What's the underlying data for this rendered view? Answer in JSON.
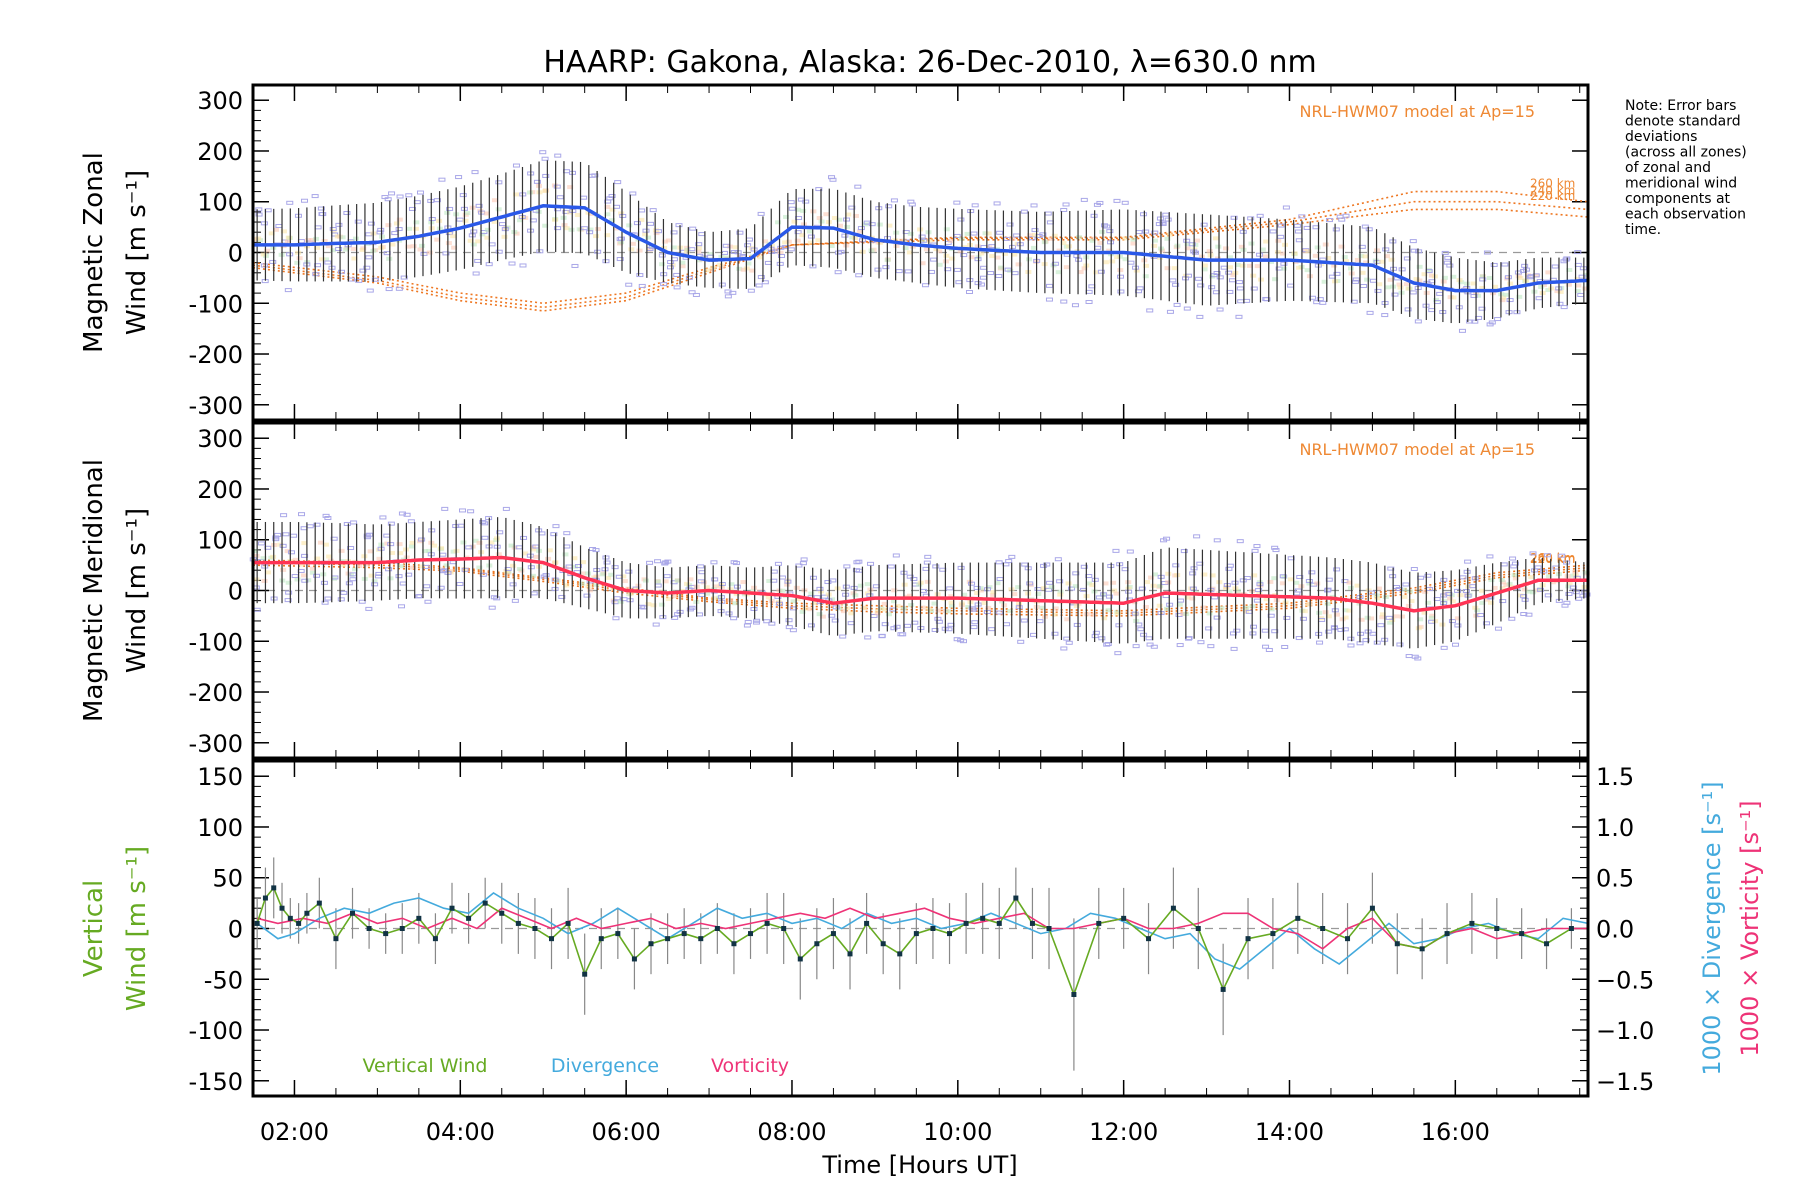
{
  "title": "HAARP: Gakona,  Alaska: 26-Dec-2010, λ=630.0 nm",
  "note": [
    "Note: Error bars",
    "denote standard",
    "deviations",
    "(across all zones)",
    "of zonal and",
    "meridional wind",
    "components at",
    "each observation",
    "time."
  ],
  "colors": {
    "zonal": "#2a58e8",
    "meridional": "#ff3355",
    "model": "#ee7722",
    "model_label": "#ee8833",
    "zone_points": "#a9a7e8",
    "error_bars": "#333333",
    "vertical": "#66aa22",
    "divergence": "#44aadd",
    "vorticity": "#ee3377",
    "vertical_err": "#888888",
    "vertical_points": "#113344"
  },
  "chart_data": [
    {
      "type": "line",
      "panel": "zonal",
      "ylabel_line1": "Magnetic Zonal",
      "ylabel_line2": "Wind [m s⁻¹]",
      "ylim": [
        -330,
        330
      ],
      "yticks": [
        300,
        200,
        100,
        0,
        -100,
        -200,
        -300
      ],
      "xlim": [
        1.5,
        17.6
      ],
      "annotation": "NRL-HWM07 model at Ap=15",
      "series": [
        {
          "role": "mean",
          "x": [
            1.5,
            2.0,
            2.5,
            3.0,
            3.5,
            4.0,
            4.5,
            5.0,
            5.5,
            6.0,
            6.5,
            7.0,
            7.5,
            8.0,
            8.5,
            9.0,
            9.5,
            10.0,
            11.0,
            12.0,
            13.0,
            14.0,
            15.0,
            15.5,
            16.0,
            16.5,
            17.0,
            17.6
          ],
          "y": [
            15,
            15,
            18,
            20,
            32,
            48,
            70,
            92,
            88,
            40,
            0,
            -15,
            -12,
            50,
            48,
            25,
            15,
            8,
            0,
            0,
            -15,
            -15,
            -25,
            -60,
            -75,
            -75,
            -60,
            -55
          ],
          "err": [
            70,
            72,
            75,
            78,
            80,
            82,
            85,
            90,
            90,
            80,
            60,
            55,
            60,
            75,
            78,
            75,
            75,
            78,
            80,
            85,
            90,
            80,
            75,
            70,
            65,
            55,
            50,
            45
          ]
        }
      ],
      "model_curves": [
        {
          "name": "260 km",
          "x": [
            1.5,
            3.0,
            4.0,
            5.0,
            6.0,
            7.0,
            8.0,
            10.0,
            12.0,
            14.0,
            15.5,
            16.5,
            17.6
          ],
          "y": [
            -30,
            -60,
            -95,
            -115,
            -95,
            -40,
            15,
            30,
            30,
            65,
            120,
            120,
            100
          ]
        },
        {
          "name": "240 km",
          "x": [
            1.5,
            3.0,
            4.0,
            5.0,
            6.0,
            7.0,
            8.0,
            10.0,
            12.0,
            14.0,
            15.5,
            16.5,
            17.6
          ],
          "y": [
            -25,
            -55,
            -88,
            -108,
            -88,
            -35,
            15,
            28,
            28,
            60,
            100,
            100,
            85
          ]
        },
        {
          "name": "220 km",
          "x": [
            1.5,
            3.0,
            4.0,
            5.0,
            6.0,
            7.0,
            8.0,
            10.0,
            12.0,
            14.0,
            15.5,
            16.5,
            17.6
          ],
          "y": [
            -20,
            -48,
            -80,
            -100,
            -80,
            -30,
            15,
            25,
            25,
            55,
            85,
            85,
            70
          ]
        }
      ]
    },
    {
      "type": "line",
      "panel": "meridional",
      "ylabel_line1": "Magnetic Meridional",
      "ylabel_line2": "Wind [m s⁻¹]",
      "ylim": [
        -330,
        330
      ],
      "yticks": [
        300,
        200,
        100,
        0,
        -100,
        -200,
        -300
      ],
      "xlim": [
        1.5,
        17.6
      ],
      "annotation": "NRL-HWM07 model at Ap=15",
      "series": [
        {
          "role": "mean",
          "x": [
            1.5,
            2.0,
            2.5,
            3.0,
            3.5,
            4.0,
            4.5,
            5.0,
            5.5,
            6.0,
            6.5,
            7.0,
            7.5,
            8.0,
            8.5,
            9.0,
            10.0,
            11.0,
            12.0,
            12.5,
            13.5,
            14.5,
            15.0,
            15.5,
            16.0,
            16.5,
            17.0,
            17.6
          ],
          "y": [
            55,
            55,
            55,
            55,
            60,
            62,
            65,
            55,
            25,
            0,
            -5,
            0,
            -5,
            -10,
            -25,
            -15,
            -15,
            -20,
            -25,
            -5,
            -10,
            -15,
            -25,
            -40,
            -30,
            -5,
            20,
            20
          ],
          "err": [
            80,
            80,
            78,
            75,
            75,
            78,
            80,
            70,
            60,
            55,
            50,
            50,
            50,
            60,
            65,
            65,
            70,
            75,
            80,
            90,
            85,
            80,
            80,
            75,
            70,
            60,
            45,
            35
          ]
        }
      ],
      "model_curves": [
        {
          "name": "260 km",
          "x": [
            1.5,
            3.0,
            4.0,
            5.0,
            6.0,
            7.0,
            8.0,
            9.0,
            10.0,
            12.0,
            14.0,
            15.5,
            16.5,
            17.6
          ],
          "y": [
            60,
            55,
            45,
            25,
            5,
            -15,
            -25,
            -30,
            -35,
            -40,
            -25,
            5,
            35,
            50
          ]
        },
        {
          "name": "240 km",
          "x": [
            1.5,
            3.0,
            4.0,
            5.0,
            6.0,
            7.0,
            8.0,
            9.0,
            10.0,
            12.0,
            14.0,
            15.5,
            16.5,
            17.6
          ],
          "y": [
            55,
            50,
            42,
            22,
            0,
            -18,
            -30,
            -36,
            -40,
            -45,
            -30,
            0,
            30,
            45
          ]
        },
        {
          "name": "220 km",
          "x": [
            1.5,
            3.0,
            4.0,
            5.0,
            6.0,
            7.0,
            8.0,
            9.0,
            10.0,
            12.0,
            14.0,
            15.5,
            16.5,
            17.6
          ],
          "y": [
            50,
            45,
            38,
            18,
            -5,
            -22,
            -35,
            -42,
            -46,
            -50,
            -35,
            -5,
            25,
            40
          ]
        }
      ]
    },
    {
      "type": "line",
      "panel": "vertical",
      "ylabel_line1": "Vertical",
      "ylabel_line2": "Wind [m s⁻¹]",
      "ylim": [
        -165,
        165
      ],
      "yticks": [
        150,
        100,
        50,
        0,
        -50,
        -100,
        -150
      ],
      "y2label_a": "1000 × Divergence [s⁻¹]",
      "y2label_b": "1000 × Vorticity [s⁻¹]",
      "y2lim": [
        -1.65,
        1.65
      ],
      "y2ticks": [
        "1.5",
        "1.0",
        "0.5",
        "0.0",
        "−0.5",
        "−1.0",
        "−1.5"
      ],
      "y2tick_values": [
        1.5,
        1.0,
        0.5,
        0.0,
        -0.5,
        -1.0,
        -1.5
      ],
      "legend": [
        "Vertical Wind",
        "Divergence",
        "Vorticity"
      ],
      "xlabel": "Time [Hours UT]",
      "xticks": [
        "02:00",
        "04:00",
        "06:00",
        "08:00",
        "10:00",
        "12:00",
        "14:00",
        "16:00"
      ],
      "xtick_values": [
        2,
        4,
        6,
        8,
        10,
        12,
        14,
        16
      ],
      "xminor_step": 0.5,
      "series": [
        {
          "name": "Vertical Wind",
          "x": [
            1.55,
            1.65,
            1.75,
            1.85,
            1.95,
            2.05,
            2.15,
            2.3,
            2.5,
            2.7,
            2.9,
            3.1,
            3.3,
            3.5,
            3.7,
            3.9,
            4.1,
            4.3,
            4.5,
            4.7,
            4.9,
            5.1,
            5.3,
            5.5,
            5.7,
            5.9,
            6.1,
            6.3,
            6.5,
            6.7,
            6.9,
            7.1,
            7.3,
            7.5,
            7.7,
            7.9,
            8.1,
            8.3,
            8.5,
            8.7,
            8.9,
            9.1,
            9.3,
            9.5,
            9.7,
            9.9,
            10.1,
            10.3,
            10.5,
            10.7,
            10.9,
            11.1,
            11.4,
            11.7,
            12.0,
            12.3,
            12.6,
            12.9,
            13.2,
            13.5,
            13.8,
            14.1,
            14.4,
            14.7,
            15.0,
            15.3,
            15.6,
            15.9,
            16.2,
            16.5,
            16.8,
            17.1,
            17.4
          ],
          "y": [
            5,
            30,
            40,
            20,
            10,
            5,
            15,
            25,
            -10,
            15,
            0,
            -5,
            0,
            10,
            -10,
            20,
            10,
            25,
            15,
            5,
            0,
            -10,
            5,
            -45,
            -10,
            -5,
            -30,
            -15,
            -10,
            -5,
            -10,
            0,
            -15,
            -5,
            5,
            0,
            -30,
            -15,
            -5,
            -25,
            5,
            -15,
            -25,
            -5,
            0,
            -5,
            5,
            10,
            5,
            30,
            5,
            0,
            -65,
            5,
            10,
            -10,
            20,
            0,
            -60,
            -10,
            -5,
            10,
            0,
            -10,
            20,
            -15,
            -20,
            -5,
            5,
            0,
            -5,
            -15,
            0
          ],
          "err": [
            25,
            30,
            30,
            25,
            20,
            20,
            20,
            25,
            30,
            25,
            20,
            20,
            25,
            25,
            25,
            25,
            25,
            25,
            30,
            30,
            30,
            30,
            35,
            40,
            30,
            25,
            30,
            30,
            25,
            25,
            25,
            25,
            30,
            25,
            30,
            35,
            40,
            35,
            35,
            35,
            30,
            30,
            35,
            30,
            30,
            30,
            30,
            35,
            35,
            30,
            35,
            40,
            75,
            35,
            30,
            35,
            40,
            40,
            45,
            40,
            35,
            35,
            35,
            35,
            35,
            30,
            30,
            30,
            30,
            30,
            25,
            25,
            20
          ]
        },
        {
          "name": "Divergence",
          "x": [
            1.55,
            1.8,
            2.0,
            2.3,
            2.6,
            2.9,
            3.2,
            3.5,
            3.8,
            4.1,
            4.4,
            4.7,
            5.0,
            5.3,
            5.6,
            5.9,
            6.2,
            6.5,
            6.8,
            7.1,
            7.4,
            7.7,
            8.0,
            8.3,
            8.6,
            8.9,
            9.2,
            9.5,
            9.8,
            10.1,
            10.4,
            10.7,
            11.0,
            11.3,
            11.6,
            11.9,
            12.2,
            12.5,
            12.8,
            13.1,
            13.4,
            13.7,
            14.0,
            14.3,
            14.6,
            14.9,
            15.2,
            15.5,
            15.8,
            16.1,
            16.4,
            16.7,
            17.0,
            17.3,
            17.6
          ],
          "y": [
            0.05,
            -0.1,
            -0.05,
            0.1,
            0.2,
            0.15,
            0.25,
            0.3,
            0.2,
            0.15,
            0.35,
            0.2,
            0.1,
            -0.05,
            0.05,
            0.2,
            0.05,
            -0.1,
            0.05,
            0.2,
            0.1,
            0.15,
            0.05,
            0.1,
            0.0,
            0.15,
            0.05,
            0.1,
            0.0,
            0.05,
            0.15,
            0.05,
            -0.05,
            0.0,
            0.15,
            0.1,
            0.0,
            -0.1,
            -0.05,
            -0.3,
            -0.4,
            -0.2,
            0.0,
            -0.2,
            -0.35,
            -0.15,
            0.05,
            -0.15,
            -0.1,
            0.0,
            0.05,
            -0.05,
            -0.1,
            0.1,
            0.05
          ]
        },
        {
          "name": "Vorticity",
          "x": [
            1.55,
            1.8,
            2.1,
            2.4,
            2.7,
            3.0,
            3.3,
            3.6,
            3.9,
            4.2,
            4.5,
            4.8,
            5.1,
            5.4,
            5.7,
            6.0,
            6.3,
            6.6,
            6.9,
            7.2,
            7.5,
            7.8,
            8.1,
            8.4,
            8.7,
            9.0,
            9.3,
            9.6,
            9.9,
            10.2,
            10.5,
            10.8,
            11.1,
            11.4,
            11.7,
            12.0,
            12.3,
            12.6,
            12.9,
            13.2,
            13.5,
            13.8,
            14.1,
            14.4,
            14.7,
            15.0,
            15.3,
            15.6,
            15.9,
            16.2,
            16.5,
            16.8,
            17.1,
            17.4,
            17.6
          ],
          "y": [
            0.1,
            0.05,
            0.1,
            0.05,
            0.15,
            0.05,
            0.1,
            0.0,
            0.1,
            0.0,
            0.2,
            0.1,
            0.0,
            0.1,
            0.0,
            0.05,
            0.1,
            0.0,
            0.05,
            0.0,
            0.05,
            0.1,
            0.15,
            0.1,
            0.2,
            0.1,
            0.15,
            0.2,
            0.1,
            0.05,
            0.1,
            0.15,
            0.0,
            0.0,
            0.05,
            0.1,
            0.0,
            0.0,
            0.05,
            0.15,
            0.15,
            0.0,
            -0.05,
            -0.2,
            0.0,
            0.1,
            -0.15,
            -0.2,
            -0.05,
            0.0,
            -0.1,
            -0.05,
            0.0,
            0.0,
            0.0
          ]
        }
      ]
    }
  ]
}
